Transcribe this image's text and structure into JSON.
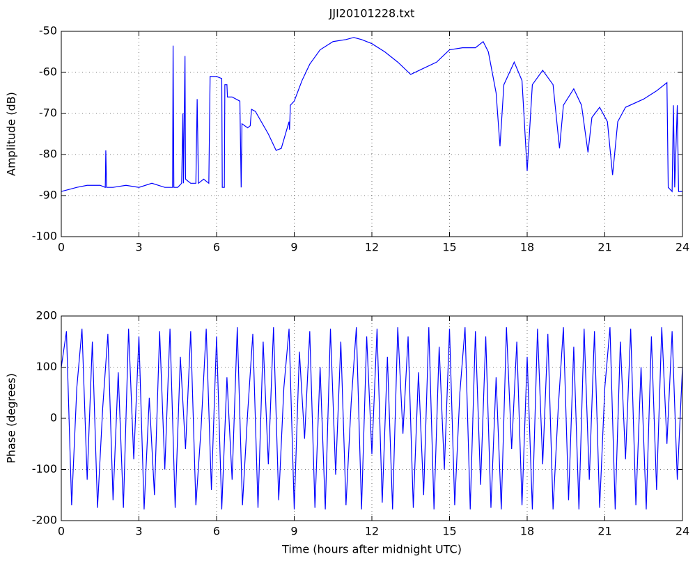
{
  "chart_data": [
    {
      "type": "line",
      "title": "JJI20101228.txt",
      "ylabel": "Amplitude (dB)",
      "grid": true,
      "xlim": [
        0,
        24
      ],
      "xticks": [
        0,
        3,
        6,
        9,
        12,
        15,
        18,
        21,
        24
      ],
      "ylim": [
        -100,
        -50
      ],
      "yticks": [
        -100,
        -90,
        -80,
        -70,
        -60,
        -50
      ],
      "series": [
        {
          "color": "#0000ff",
          "x": [
            0,
            0.3,
            0.6,
            1.0,
            1.5,
            1.7,
            1.72,
            1.75,
            2.0,
            2.5,
            3.0,
            3.5,
            4.0,
            4.2,
            4.3,
            4.32,
            4.35,
            4.5,
            4.65,
            4.7,
            4.72,
            4.78,
            4.8,
            5.0,
            5.2,
            5.25,
            5.3,
            5.5,
            5.7,
            5.75,
            6.0,
            6.2,
            6.22,
            6.3,
            6.32,
            6.4,
            6.42,
            6.6,
            6.9,
            6.95,
            6.98,
            7.2,
            7.3,
            7.35,
            7.5,
            8.0,
            8.3,
            8.5,
            8.8,
            8.82,
            8.85,
            9.0,
            9.3,
            9.6,
            10.0,
            10.5,
            11.0,
            11.3,
            11.6,
            12.0,
            12.5,
            13.0,
            13.5,
            14.0,
            14.5,
            15.0,
            15.5,
            16.0,
            16.3,
            16.5,
            16.8,
            16.95,
            17.1,
            17.5,
            17.8,
            18.0,
            18.2,
            18.6,
            19.0,
            19.25,
            19.4,
            19.8,
            20.1,
            20.35,
            20.5,
            20.8,
            21.1,
            21.3,
            21.5,
            21.8,
            22.5,
            23.0,
            23.4,
            23.45,
            23.6,
            23.65,
            23.7,
            23.8,
            23.85,
            24.0
          ],
          "values": [
            -89,
            -88.5,
            -88,
            -87.5,
            -87.5,
            -88,
            -79,
            -88,
            -88,
            -87.5,
            -88,
            -87,
            -88,
            -88,
            -88,
            -53.5,
            -88,
            -88,
            -87,
            -70,
            -87,
            -56,
            -86,
            -87,
            -87,
            -66.5,
            -87,
            -86,
            -87,
            -61,
            -61,
            -61.5,
            -88,
            -88,
            -63,
            -63,
            -66,
            -66,
            -67,
            -88,
            -72.5,
            -73.5,
            -73,
            -69,
            -69.5,
            -75,
            -79,
            -78.5,
            -72,
            -74,
            -68,
            -67,
            -62,
            -58,
            -54.5,
            -52.5,
            -52,
            -51.5,
            -52,
            -53,
            -55,
            -57.5,
            -60.5,
            -59,
            -57.5,
            -54.5,
            -54,
            -54,
            -52.5,
            -55,
            -65,
            -78,
            -63,
            -57.5,
            -62,
            -84,
            -63,
            -59.5,
            -63,
            -78.5,
            -68,
            -64,
            -68,
            -79.5,
            -71,
            -68.5,
            -72,
            -85,
            -72,
            -68.5,
            -66.5,
            -64.5,
            -62.5,
            -88,
            -89,
            -68,
            -88,
            -68,
            -89,
            -89
          ]
        }
      ]
    },
    {
      "type": "line",
      "ylabel": "Phase (degrees)",
      "xlabel": "Time (hours after midnight UTC)",
      "grid": true,
      "xlim": [
        0,
        24
      ],
      "xticks": [
        0,
        3,
        6,
        9,
        12,
        15,
        18,
        21,
        24
      ],
      "ylim": [
        -200,
        200
      ],
      "yticks": [
        -200,
        -100,
        0,
        100,
        200
      ],
      "series": [
        {
          "color": "#0000ff",
          "x": [
            0,
            0.2,
            0.4,
            0.6,
            0.8,
            1,
            1.2,
            1.4,
            1.6,
            1.8,
            2,
            2.2,
            2.4,
            2.6,
            2.8,
            3,
            3.2,
            3.4,
            3.6,
            3.8,
            4,
            4.2,
            4.4,
            4.6,
            4.8,
            5,
            5.2,
            5.4,
            5.6,
            5.8,
            6,
            6.2,
            6.4,
            6.6,
            6.8,
            7,
            7.2,
            7.4,
            7.6,
            7.8,
            8,
            8.2,
            8.4,
            8.6,
            8.8,
            9,
            9.2,
            9.4,
            9.6,
            9.8,
            10,
            10.2,
            10.4,
            10.6,
            10.8,
            11,
            11.2,
            11.4,
            11.6,
            11.8,
            12,
            12.2,
            12.4,
            12.6,
            12.8,
            13,
            13.2,
            13.4,
            13.6,
            13.8,
            14,
            14.2,
            14.4,
            14.6,
            14.8,
            15,
            15.2,
            15.4,
            15.6,
            15.8,
            16,
            16.2,
            16.4,
            16.6,
            16.8,
            17,
            17.2,
            17.4,
            17.6,
            17.8,
            18,
            18.2,
            18.4,
            18.6,
            18.8,
            19,
            19.2,
            19.4,
            19.6,
            19.8,
            20,
            20.2,
            20.4,
            20.6,
            20.8,
            21,
            21.2,
            21.4,
            21.6,
            21.8,
            22,
            22.2,
            22.4,
            22.6,
            22.8,
            23,
            23.2,
            23.4,
            23.6,
            23.8,
            24
          ],
          "values": [
            100,
            170,
            -170,
            60,
            175,
            -120,
            150,
            -175,
            20,
            165,
            -160,
            90,
            -175,
            175,
            -80,
            160,
            -178,
            40,
            -150,
            170,
            -100,
            175,
            -175,
            120,
            -60,
            170,
            -170,
            -20,
            175,
            -140,
            160,
            -178,
            80,
            -120,
            178,
            -170,
            10,
            165,
            -175,
            150,
            -90,
            178,
            -160,
            60,
            175,
            -178,
            130,
            -40,
            170,
            -175,
            100,
            -178,
            175,
            -110,
            150,
            -170,
            30,
            178,
            -178,
            160,
            -70,
            175,
            -165,
            120,
            -178,
            178,
            -30,
            160,
            -175,
            90,
            -150,
            178,
            -178,
            140,
            -100,
            175,
            -170,
            50,
            178,
            -178,
            170,
            -130,
            160,
            -175,
            80,
            -178,
            178,
            -60,
            150,
            -170,
            120,
            -178,
            175,
            -90,
            165,
            -178,
            20,
            178,
            -160,
            140,
            -178,
            175,
            -120,
            170,
            -175,
            60,
            178,
            -178,
            150,
            -80,
            175,
            -170,
            100,
            -178,
            160,
            -140,
            178,
            -50,
            170,
            -120,
            100
          ]
        }
      ]
    }
  ]
}
